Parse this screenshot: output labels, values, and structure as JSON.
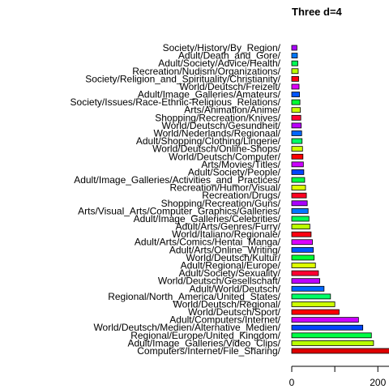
{
  "chart_data": {
    "type": "bar",
    "orientation": "horizontal",
    "title": "Three d=4",
    "xlabel": "",
    "ylabel": "",
    "xlim": [
      0,
      510
    ],
    "xticks": [
      0,
      200,
      400
    ],
    "grid": false,
    "categories": [
      "Computers/Internet/File_Sharing/",
      "Adult/Image_Galleries/Video_Clips/",
      "Regional/Europe/United_Kingdom/",
      "World/Deutsch/Medien/Alternative_Medien/",
      "Adult/Computers/Internet/",
      "World/Deutsch/Sport/",
      "World/Deutsch/Regional/",
      "Regional/North_America/United_States/",
      "Adult/World/Deutsch/",
      "World/Deutsch/Gesellschaft/",
      "Adult/Society/Sexuality/",
      "Adult/Regional/Europe/",
      "World/Deutsch/Kultur/",
      "Adult/Arts/Online_Writing/",
      "Adult/Arts/Comics/Hentai_Manga/",
      "World/Italiano/Regionale/",
      "Adult/Arts/Genres/Furry/",
      "Adult/Image_Galleries/Celebrities/",
      "Arts/Visual_Arts/Computer_Graphics/Galleries/",
      "Shopping/Recreation/Guns/",
      "Recreation/Drugs/",
      "Recreation/Humor/Visual/",
      "Adult/Image_Galleries/Activities_and_Practices/",
      "Adult/Society/People/",
      "Arts/Movies/Titles/",
      "World/Deutsch/Computer/",
      "World/Deutsch/Online-Shops/",
      "Adult/Shopping/Clothing/Lingerie/",
      "World/Nederlands/Regionaal/",
      "World/Deutsch/Gesundheit/",
      "Shopping/Recreation/Knives/",
      "Arts/Animation/Anime/",
      "Society/Issues/Race-Ethnic-Religious_Relations/",
      "Adult/Image_Galleries/Amateurs/",
      "World/Deutsch/Freizeit/",
      "Society/Religion_and_Spirituality/Christianity/",
      "Recreation/Nudism/Organizations/",
      "Adult/Society/Advice/Health/",
      "Adult/Death_and_Gore/",
      "Society/History/By_Region/"
    ],
    "values": [
      520,
      190,
      185,
      165,
      155,
      110,
      100,
      90,
      75,
      65,
      62,
      55,
      52,
      50,
      48,
      45,
      42,
      40,
      38,
      36,
      34,
      32,
      30,
      28,
      27,
      26,
      25,
      24,
      23,
      22,
      21,
      20,
      19,
      18,
      17,
      16,
      15,
      14,
      13,
      12
    ],
    "colors": [
      "#dd0000",
      "#b8ff00",
      "#00ff44",
      "#0044ff",
      "#cc00ff",
      "#ff0000",
      "#ccff00",
      "#00ff66",
      "#0066ff",
      "#bb00ff",
      "#ff0033",
      "#ddff00",
      "#00ff33",
      "#0055ff",
      "#dd00ff",
      "#ff0011",
      "#bbff00",
      "#00ff55",
      "#0077ff",
      "#aa00ff",
      "#ff0022",
      "#ddff00",
      "#00ff44",
      "#0044ff",
      "#cc00ff",
      "#ff0000",
      "#ccff00",
      "#00ff66",
      "#0066ff",
      "#bb00ff",
      "#ff0033",
      "#ccff00",
      "#00ff33",
      "#0055ff",
      "#dd00ff",
      "#ff0011",
      "#bbff00",
      "#00ff55",
      "#0077ff",
      "#aa00ff"
    ]
  }
}
